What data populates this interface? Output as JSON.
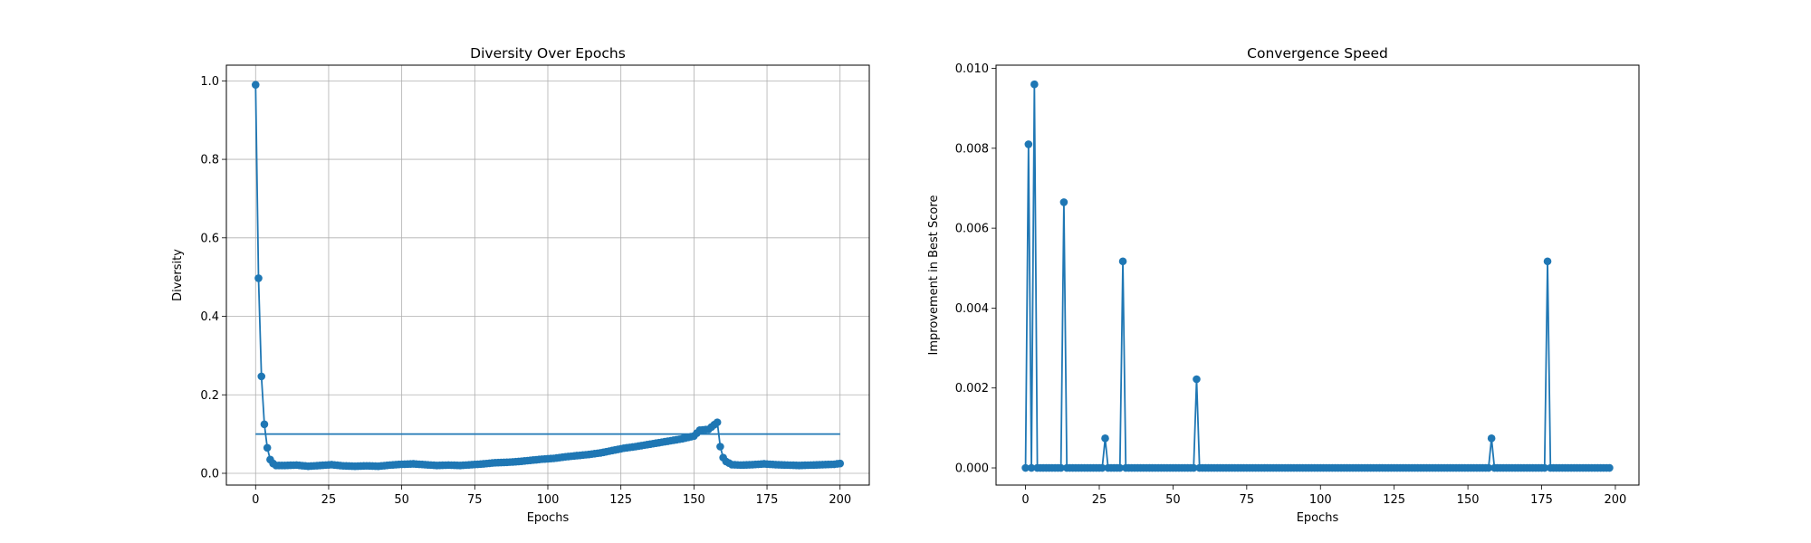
{
  "chart_data": [
    {
      "type": "line",
      "title": "Diversity Over Epochs",
      "xlabel": "Epochs",
      "ylabel": "Diversity",
      "xlim": [
        -10,
        210
      ],
      "ylim": [
        -0.03,
        1.04
      ],
      "xticks": [
        0,
        25,
        50,
        75,
        100,
        125,
        150,
        175,
        200
      ],
      "yticks": [
        0.0,
        0.2,
        0.4,
        0.6,
        0.8,
        1.0
      ],
      "xtick_labels": [
        "0",
        "25",
        "50",
        "75",
        "100",
        "125",
        "150",
        "175",
        "200"
      ],
      "ytick_labels": [
        "0.0",
        "0.2",
        "0.4",
        "0.6",
        "0.8",
        "1.0"
      ],
      "grid": true,
      "color": "#1f77b4",
      "marker": "circle",
      "keypoints": [
        [
          0,
          0.99
        ],
        [
          1,
          0.497
        ],
        [
          2,
          0.247
        ],
        [
          3,
          0.125
        ],
        [
          4,
          0.065
        ],
        [
          5,
          0.035
        ],
        [
          6,
          0.025
        ],
        [
          7,
          0.02
        ],
        [
          10,
          0.02
        ],
        [
          14,
          0.021
        ],
        [
          18,
          0.018
        ],
        [
          22,
          0.02
        ],
        [
          26,
          0.022
        ],
        [
          30,
          0.019
        ],
        [
          34,
          0.018
        ],
        [
          38,
          0.019
        ],
        [
          42,
          0.018
        ],
        [
          46,
          0.021
        ],
        [
          50,
          0.023
        ],
        [
          54,
          0.024
        ],
        [
          58,
          0.022
        ],
        [
          62,
          0.02
        ],
        [
          66,
          0.021
        ],
        [
          70,
          0.02
        ],
        [
          74,
          0.022
        ],
        [
          78,
          0.024
        ],
        [
          82,
          0.027
        ],
        [
          86,
          0.028
        ],
        [
          90,
          0.03
        ],
        [
          94,
          0.033
        ],
        [
          98,
          0.036
        ],
        [
          102,
          0.038
        ],
        [
          106,
          0.042
        ],
        [
          110,
          0.045
        ],
        [
          114,
          0.048
        ],
        [
          118,
          0.052
        ],
        [
          122,
          0.058
        ],
        [
          126,
          0.064
        ],
        [
          130,
          0.068
        ],
        [
          134,
          0.073
        ],
        [
          138,
          0.078
        ],
        [
          142,
          0.083
        ],
        [
          146,
          0.088
        ],
        [
          150,
          0.095
        ],
        [
          152,
          0.11
        ],
        [
          155,
          0.112
        ],
        [
          158,
          0.13
        ],
        [
          159,
          0.068
        ],
        [
          160,
          0.04
        ],
        [
          161,
          0.03
        ],
        [
          163,
          0.022
        ],
        [
          166,
          0.021
        ],
        [
          170,
          0.022
        ],
        [
          174,
          0.024
        ],
        [
          178,
          0.022
        ],
        [
          182,
          0.021
        ],
        [
          186,
          0.02
        ],
        [
          190,
          0.021
        ],
        [
          194,
          0.022
        ],
        [
          198,
          0.023
        ],
        [
          200,
          0.025
        ]
      ],
      "reference_line": {
        "x": [
          0,
          200
        ],
        "y": 0.1
      }
    },
    {
      "type": "line",
      "title": "Convergence Speed",
      "xlabel": "Epochs",
      "ylabel": "Improvement in Best Score",
      "xlim": [
        -10,
        208
      ],
      "ylim": [
        -0.00043,
        0.01008
      ],
      "xticks": [
        0,
        25,
        50,
        75,
        100,
        125,
        150,
        175,
        200
      ],
      "yticks": [
        0.0,
        0.002,
        0.004,
        0.006,
        0.008,
        0.01
      ],
      "xtick_labels": [
        "0",
        "25",
        "50",
        "75",
        "100",
        "125",
        "150",
        "175",
        "200"
      ],
      "ytick_labels": [
        "0.000",
        "0.002",
        "0.004",
        "0.006",
        "0.008",
        "0.010"
      ],
      "grid": false,
      "color": "#1f77b4",
      "marker": "circle",
      "x_range": [
        0,
        198
      ],
      "baseline": 0.0,
      "spikes": [
        [
          1,
          0.0081
        ],
        [
          3,
          0.0096
        ],
        [
          13,
          0.00665
        ],
        [
          27,
          0.00074
        ],
        [
          33,
          0.00517
        ],
        [
          58,
          0.00222
        ],
        [
          158,
          0.00074
        ],
        [
          177,
          0.00517
        ]
      ]
    }
  ]
}
